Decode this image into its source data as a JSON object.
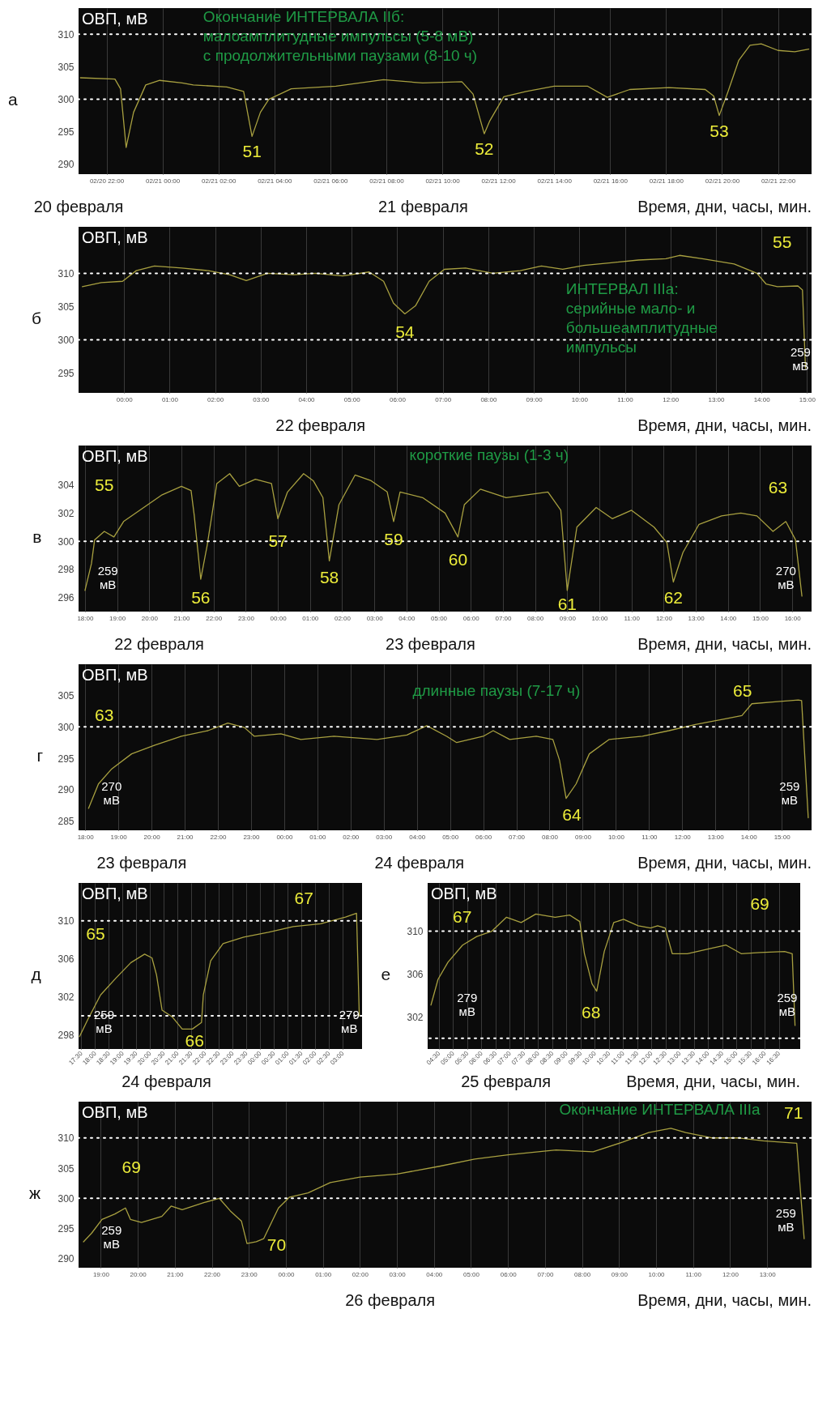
{
  "chart_data": [
    {
      "type": "line",
      "title": "а",
      "ylabel": "ОВП, мВ",
      "xlim": [
        "--02-20T21:00",
        "--02-21T23:12"
      ],
      "ylim": [
        288.5,
        314
      ],
      "yticks": [
        290,
        295,
        300,
        305,
        310
      ],
      "xticks": [
        {
          "value": "--02-20T22:00",
          "label": "02/20 22:00"
        },
        {
          "value": "--02-21T00:00",
          "label": "02/21 00:00"
        },
        {
          "value": "--02-21T02:00",
          "label": "02/21 02:00"
        },
        {
          "value": "--02-21T04:00",
          "label": "02/21 04:00"
        },
        {
          "value": "--02-21T06:00",
          "label": "02/21 06:00"
        },
        {
          "value": "--02-21T08:00",
          "label": "02/21 08:00"
        },
        {
          "value": "--02-21T10:00",
          "label": "02/21 10:00"
        },
        {
          "value": "--02-21T12:00",
          "label": "02/21 12:00"
        },
        {
          "value": "--02-21T14:00",
          "label": "02/21 14:00"
        },
        {
          "value": "--02-21T16:00",
          "label": "02/21 16:00"
        },
        {
          "value": "--02-21T18:00",
          "label": "02/21 18:00"
        },
        {
          "value": "--02-21T20:00",
          "label": "02/21 20:00"
        },
        {
          "value": "--02-21T22:00",
          "label": "02/21 22:00"
        }
      ],
      "x": [
        "--02-20T21:04",
        "--02-20T22:18",
        "--02-20T22:30",
        "--02-20T22:42",
        "--02-20T22:58",
        "--02-20T23:24",
        "--02-20T23:54",
        "--02-21T00:42",
        "--02-21T01:06",
        "--02-21T02:18",
        "--02-21T02:54",
        "--02-21T03:12",
        "--02-21T03:30",
        "--02-21T03:48",
        "--02-21T04:36",
        "--02-21T06:12",
        "--02-21T07:54",
        "--02-21T09:18",
        "--02-21T10:42",
        "--02-21T11:06",
        "--02-21T11:30",
        "--02-21T11:42",
        "--02-21T12:12",
        "--02-21T13:00",
        "--02-21T14:00",
        "--02-21T15:12",
        "--02-21T15:54",
        "--02-21T16:42",
        "--02-21T18:06",
        "--02-21T19:24",
        "--02-21T19:42",
        "--02-21T19:54",
        "--02-21T20:12",
        "--02-21T20:36",
        "--02-21T21:00",
        "--02-21T21:24",
        "--02-21T22:00",
        "--02-21T22:36",
        "--02-21T23:06"
      ],
      "series": [
        {
          "color": "#a8a040",
          "values": [
            303.3,
            303.1,
            301.6,
            292.6,
            298,
            302.2,
            302.9,
            302.5,
            302.2,
            301.9,
            301.2,
            294.3,
            298,
            300,
            301.6,
            302,
            303,
            302.5,
            302.7,
            300.8,
            294.7,
            296.7,
            300.4,
            301.2,
            302,
            302,
            300.3,
            301.5,
            301.8,
            301.5,
            300.5,
            297.5,
            301,
            306,
            308.3,
            308.5,
            307.5,
            307.3,
            307.7
          ]
        }
      ],
      "ref_lines": [
        {
          "axis": "y",
          "value": 310,
          "color": "#ffffff",
          "line_style": "dotted"
        },
        {
          "axis": "y",
          "value": 300,
          "color": "#ffffff",
          "line_style": "dotted"
        }
      ],
      "grid": "x",
      "annotations": [
        {
          "text": "51",
          "x": "--02-21T03:12",
          "y": 294.3
        },
        {
          "text": "52",
          "x": "--02-21T11:30",
          "y": 294.7
        },
        {
          "text": "53",
          "x": "--02-21T19:54",
          "y": 297.5
        },
        "Окончание ИНТЕРВАЛА IIб:\nмалоамплитудные импульсы (5-8 мВ)\nс продолжительными паузами (8-10 ч)",
        "20 февраля",
        "21 февраля",
        "Время, дни, часы, мин."
      ]
    },
    {
      "type": "line",
      "title": "б",
      "ylabel": "ОВП, мВ",
      "xlim": [
        "--02-21T23:00",
        "--02-22T15:06"
      ],
      "ylim": [
        292,
        317
      ],
      "yticks": [
        295,
        300,
        305,
        310
      ],
      "xticks": [
        {
          "value": "--02-22T00:00",
          "label": "00:00"
        },
        {
          "value": "--02-22T01:00",
          "label": "01:00"
        },
        {
          "value": "--02-22T02:00",
          "label": "02:00"
        },
        {
          "value": "--02-22T03:00",
          "label": "03:00"
        },
        {
          "value": "--02-22T04:00",
          "label": "04:00"
        },
        {
          "value": "--02-22T05:00",
          "label": "05:00"
        },
        {
          "value": "--02-22T06:00",
          "label": "06:00"
        },
        {
          "value": "--02-22T07:00",
          "label": "07:00"
        },
        {
          "value": "--02-22T08:00",
          "label": "08:00"
        },
        {
          "value": "--02-22T09:00",
          "label": "09:00"
        },
        {
          "value": "--02-22T10:00",
          "label": "10:00"
        },
        {
          "value": "--02-22T11:00",
          "label": "11:00"
        },
        {
          "value": "--02-22T12:00",
          "label": "12:00"
        },
        {
          "value": "--02-22T13:00",
          "label": "13:00"
        },
        {
          "value": "--02-22T14:00",
          "label": "14:00"
        },
        {
          "value": "--02-22T15:00",
          "label": "15:00"
        }
      ],
      "x": [
        "--02-21T23:05",
        "--02-21T23:30",
        "--02-21T23:58",
        "--02-22T00:16",
        "--02-22T00:40",
        "--02-22T01:16",
        "--02-22T01:51",
        "--02-22T02:19",
        "--02-22T02:41",
        "--02-22T03:09",
        "--02-22T03:44",
        "--02-22T04:12",
        "--02-22T04:48",
        "--02-22T05:23",
        "--02-22T05:42",
        "--02-22T05:55",
        "--02-22T06:10",
        "--02-22T06:24",
        "--02-22T06:42",
        "--02-22T07:02",
        "--02-22T07:30",
        "--02-22T08:06",
        "--02-22T08:42",
        "--02-22T09:10",
        "--02-22T09:38",
        "--02-22T10:06",
        "--02-22T10:42",
        "--02-22T11:18",
        "--02-22T11:54",
        "--02-22T12:12",
        "--02-22T12:42",
        "--02-22T13:24",
        "--02-22T13:54",
        "--02-22T14:06",
        "--02-22T14:21",
        "--02-22T14:48",
        "--02-22T14:54",
        "--02-22T14:58"
      ],
      "series": [
        {
          "color": "#a8a040",
          "values": [
            308,
            308.6,
            308.8,
            310.4,
            311.1,
            310.8,
            310.4,
            309.8,
            308.9,
            310,
            309.8,
            310,
            309.6,
            310.2,
            308.8,
            305.5,
            303.9,
            305.1,
            308.8,
            310.6,
            310.8,
            310,
            310.4,
            311.1,
            310.6,
            311.2,
            311.6,
            312,
            312.2,
            312.7,
            312.2,
            311.4,
            310,
            308.4,
            308,
            308.1,
            307.5,
            295.7
          ]
        }
      ],
      "ref_lines": [
        {
          "axis": "y",
          "value": 310,
          "color": "#ffffff",
          "line_style": "dotted"
        },
        {
          "axis": "y",
          "value": 300,
          "color": "#ffffff",
          "line_style": "dotted"
        }
      ],
      "grid": "x",
      "annotations": [
        {
          "text": "54",
          "x": "--02-22T06:10",
          "y": 303.9
        },
        {
          "text": "55",
          "x": "--02-22T14:54",
          "y": 307.5
        },
        "ИНТЕРВАЛ IIIа:\nсерийные мало- и\nбольшеамплитудные\nимпульсы",
        "259\nмВ",
        "22 февраля",
        "Время, дни, часы, мин."
      ]
    },
    {
      "type": "line",
      "title": "в",
      "ylabel": "ОВП, мВ",
      "xlim": [
        "--02-22T17:48",
        "--02-23T16:36"
      ],
      "ylim": [
        295,
        306.8
      ],
      "yticks": [
        296,
        298,
        300,
        302,
        304
      ],
      "xticks": [
        {
          "value": "--02-22T18:00",
          "label": "18:00"
        },
        {
          "value": "--02-22T19:00",
          "label": "19:00"
        },
        {
          "value": "--02-22T20:00",
          "label": "20:00"
        },
        {
          "value": "--02-22T21:00",
          "label": "21:00"
        },
        {
          "value": "--02-22T22:00",
          "label": "22:00"
        },
        {
          "value": "--02-22T23:00",
          "label": "23:00"
        },
        {
          "value": "--02-23T00:00",
          "label": "00:00"
        },
        {
          "value": "--02-23T01:00",
          "label": "01:00"
        },
        {
          "value": "--02-23T02:00",
          "label": "02:00"
        },
        {
          "value": "--02-23T03:00",
          "label": "03:00"
        },
        {
          "value": "--02-23T04:00",
          "label": "04:00"
        },
        {
          "value": "--02-23T05:00",
          "label": "05:00"
        },
        {
          "value": "--02-23T06:00",
          "label": "06:00"
        },
        {
          "value": "--02-23T07:00",
          "label": "07:00"
        },
        {
          "value": "--02-23T08:00",
          "label": "08:00"
        },
        {
          "value": "--02-23T09:00",
          "label": "09:00"
        },
        {
          "value": "--02-23T10:00",
          "label": "10:00"
        },
        {
          "value": "--02-23T11:00",
          "label": "11:00"
        },
        {
          "value": "--02-23T12:00",
          "label": "12:00"
        },
        {
          "value": "--02-23T13:00",
          "label": "13:00"
        },
        {
          "value": "--02-23T14:00",
          "label": "14:00"
        },
        {
          "value": "--02-23T15:00",
          "label": "15:00"
        },
        {
          "value": "--02-23T16:00",
          "label": "16:00"
        }
      ],
      "x": [
        "--02-22T18:00",
        "--02-22T18:12",
        "--02-22T18:18",
        "--02-22T18:36",
        "--02-22T18:54",
        "--02-22T19:12",
        "--02-22T19:42",
        "--02-22T20:24",
        "--02-22T21:00",
        "--02-22T21:18",
        "--02-22T21:24",
        "--02-22T21:36",
        "--02-22T21:48",
        "--02-22T22:06",
        "--02-22T22:30",
        "--02-22T22:48",
        "--02-22T23:18",
        "--02-22T23:48",
        "--02-23T00:00",
        "--02-23T00:18",
        "--02-23T00:48",
        "--02-23T01:06",
        "--02-23T01:24",
        "--02-23T01:36",
        "--02-23T01:54",
        "--02-23T02:24",
        "--02-23T02:54",
        "--02-23T03:24",
        "--02-23T03:36",
        "--02-23T03:48",
        "--02-23T04:30",
        "--02-23T05:12",
        "--02-23T05:36",
        "--02-23T05:48",
        "--02-23T06:18",
        "--02-23T07:06",
        "--02-23T08:24",
        "--02-23T08:48",
        "--02-23T09:00",
        "--02-23T09:18",
        "--02-23T09:54",
        "--02-23T10:24",
        "--02-23T11:00",
        "--02-23T11:42",
        "--02-23T12:06",
        "--02-23T12:18",
        "--02-23T12:36",
        "--02-23T13:06",
        "--02-23T13:48",
        "--02-23T14:24",
        "--02-23T14:54",
        "--02-23T15:24",
        "--02-23T15:48",
        "--02-23T16:06",
        "--02-23T16:18"
      ],
      "series": [
        {
          "color": "#a8a040",
          "values": [
            296.5,
            298.4,
            300.1,
            300.7,
            300.3,
            301.4,
            302.2,
            303.3,
            303.9,
            303.6,
            301.8,
            297.3,
            299.7,
            304.1,
            304.8,
            303.9,
            304.4,
            304.1,
            301.6,
            303.5,
            304.8,
            304.3,
            303.1,
            298.6,
            302.6,
            304.7,
            304.3,
            303.5,
            301.4,
            303.5,
            303.1,
            302,
            300.3,
            302.6,
            303.7,
            303.1,
            303.5,
            302.2,
            296.5,
            301,
            302.4,
            301.6,
            302.2,
            301,
            299.9,
            297.1,
            299.2,
            301.2,
            301.8,
            302,
            301.8,
            300.7,
            301.4,
            300.1,
            296.1
          ]
        }
      ],
      "ref_lines": [
        {
          "axis": "y",
          "value": 300,
          "color": "#ffffff",
          "line_style": "dotted"
        }
      ],
      "grid": "x",
      "annotations": [
        "55",
        {
          "text": "56",
          "x": "--02-22T21:36",
          "y": 297.3
        },
        {
          "text": "57",
          "x": "--02-23T00:00",
          "y": 301.6
        },
        {
          "text": "58",
          "x": "--02-23T01:36",
          "y": 298.6
        },
        {
          "text": "59",
          "x": "--02-23T03:36",
          "y": 301.4
        },
        {
          "text": "60",
          "x": "--02-23T05:36",
          "y": 300.3
        },
        {
          "text": "61",
          "x": "--02-23T09:00",
          "y": 296.5
        },
        {
          "text": "62",
          "x": "--02-23T12:18",
          "y": 297.1
        },
        "63",
        "короткие паузы (1-3 ч)",
        "259\nмВ",
        "270\nмВ",
        "22 февраля",
        "23 февраля",
        "Время, дни, часы, мин."
      ]
    },
    {
      "type": "line",
      "title": "г",
      "ylabel": "ОВП, мВ",
      "xlim": [
        "--02-23T17:48",
        "--02-24T15:54"
      ],
      "ylim": [
        283.5,
        310
      ],
      "yticks": [
        285,
        290,
        295,
        300,
        305
      ],
      "xticks": [
        {
          "value": "--02-23T18:00",
          "label": "18:00"
        },
        {
          "value": "--02-23T19:00",
          "label": "19:00"
        },
        {
          "value": "--02-23T20:00",
          "label": "20:00"
        },
        {
          "value": "--02-23T21:00",
          "label": "21:00"
        },
        {
          "value": "--02-23T22:00",
          "label": "22:00"
        },
        {
          "value": "--02-23T23:00",
          "label": "23:00"
        },
        {
          "value": "--02-24T00:00",
          "label": "00:00"
        },
        {
          "value": "--02-24T01:00",
          "label": "01:00"
        },
        {
          "value": "--02-24T02:00",
          "label": "02:00"
        },
        {
          "value": "--02-24T03:00",
          "label": "03:00"
        },
        {
          "value": "--02-24T04:00",
          "label": "04:00"
        },
        {
          "value": "--02-24T05:00",
          "label": "05:00"
        },
        {
          "value": "--02-24T06:00",
          "label": "06:00"
        },
        {
          "value": "--02-24T07:00",
          "label": "07:00"
        },
        {
          "value": "--02-24T08:00",
          "label": "08:00"
        },
        {
          "value": "--02-24T09:00",
          "label": "09:00"
        },
        {
          "value": "--02-24T10:00",
          "label": "10:00"
        },
        {
          "value": "--02-24T11:00",
          "label": "11:00"
        },
        {
          "value": "--02-24T12:00",
          "label": "12:00"
        },
        {
          "value": "--02-24T13:00",
          "label": "13:00"
        },
        {
          "value": "--02-24T14:00",
          "label": "14:00"
        },
        {
          "value": "--02-24T15:00",
          "label": "15:00"
        }
      ],
      "x": [
        "--02-23T18:06",
        "--02-23T18:24",
        "--02-23T18:48",
        "--02-23T19:24",
        "--02-23T20:06",
        "--02-23T20:54",
        "--02-23T21:42",
        "--02-23T22:18",
        "--02-23T22:48",
        "--02-23T23:06",
        "--02-23T23:54",
        "--02-24T00:30",
        "--02-24T01:30",
        "--02-24T02:48",
        "--02-24T03:42",
        "--02-24T04:18",
        "--02-24T04:54",
        "--02-24T05:12",
        "--02-24T06:00",
        "--02-24T06:18",
        "--02-24T06:48",
        "--02-24T07:36",
        "--02-24T08:06",
        "--02-24T08:18",
        "--02-24T08:30",
        "--02-24T08:48",
        "--02-24T09:12",
        "--02-24T09:48",
        "--02-24T10:48",
        "--02-24T11:36",
        "--02-24T12:24",
        "--02-24T13:18",
        "--02-24T13:48",
        "--02-24T14:06",
        "--02-24T14:48",
        "--02-24T15:30",
        "--02-24T15:36",
        "--02-24T15:48"
      ],
      "series": [
        {
          "color": "#a8a040",
          "values": [
            287,
            290.9,
            293.3,
            295.7,
            297.1,
            298.5,
            299.4,
            300.6,
            299.9,
            298.5,
            298.9,
            298,
            298.5,
            298,
            298.7,
            300.2,
            298.5,
            297.5,
            298.5,
            299.4,
            298,
            298.5,
            298,
            294.7,
            288.6,
            290.9,
            295.7,
            298,
            298.5,
            299.4,
            300.4,
            301.3,
            301.8,
            303.7,
            304,
            304.3,
            304.2,
            285.5
          ]
        }
      ],
      "ref_lines": [
        {
          "axis": "y",
          "value": 300,
          "color": "#ffffff",
          "line_style": "dotted"
        }
      ],
      "grid": "x",
      "annotations": [
        "63",
        {
          "text": "64",
          "x": "--02-24T08:30",
          "y": 288.6
        },
        {
          "text": "65",
          "x": "--02-24T15:36",
          "y": 304.2
        },
        "длинные паузы (7-17 ч)",
        "270\nмВ",
        "259\nмВ",
        "23 февраля",
        "24 февраля",
        "Время, дни, часы, мин."
      ]
    },
    {
      "type": "line",
      "title": "д",
      "ylabel": "ОВП, мВ",
      "xlim": [
        "--02-24T17:24",
        "--02-25T03:42"
      ],
      "ylim": [
        296.5,
        314
      ],
      "yticks": [
        298,
        302,
        306,
        310
      ],
      "xticks": [
        {
          "value": "--02-24T17:30",
          "label": "17:30"
        },
        {
          "value": "--02-24T18:00",
          "label": "18:00"
        },
        {
          "value": "--02-24T18:30",
          "label": "18:30"
        },
        {
          "value": "--02-24T19:00",
          "label": "19:00"
        },
        {
          "value": "--02-24T19:30",
          "label": "19:30"
        },
        {
          "value": "--02-24T20:00",
          "label": "20:00"
        },
        {
          "value": "--02-24T20:30",
          "label": "20:30"
        },
        {
          "value": "--02-24T21:00",
          "label": "21:00"
        },
        {
          "value": "--02-24T21:30",
          "label": "21:30"
        },
        {
          "value": "--02-24T22:00",
          "label": "22:00"
        },
        {
          "value": "--02-24T22:30",
          "label": "22:30"
        },
        {
          "value": "--02-24T23:00",
          "label": "23:00"
        },
        {
          "value": "--02-24T23:30",
          "label": "23:30"
        },
        {
          "value": "--02-25T00:00",
          "label": "00:00"
        },
        {
          "value": "--02-25T00:30",
          "label": "00:30"
        },
        {
          "value": "--02-25T01:00",
          "label": "01:00"
        },
        {
          "value": "--02-25T01:30",
          "label": "01:30"
        },
        {
          "value": "--02-25T02:00",
          "label": "02:00"
        },
        {
          "value": "--02-25T02:30",
          "label": "02:30"
        },
        {
          "value": "--02-25T03:00",
          "label": "03:00"
        }
      ],
      "x": [
        "--02-24T17:26",
        "--02-24T17:44",
        "--02-24T18:12",
        "--02-24T18:46",
        "--02-24T19:18",
        "--02-24T19:48",
        "--02-24T20:04",
        "--02-24T20:14",
        "--02-24T20:26",
        "--02-24T20:48",
        "--02-24T21:10",
        "--02-24T21:32",
        "--02-24T21:52",
        "--02-24T21:56",
        "--02-24T22:12",
        "--02-24T22:39",
        "--02-24T23:24",
        "--02-25T00:18",
        "--02-25T01:12",
        "--02-25T02:12",
        "--02-25T03:06",
        "--02-25T03:30",
        "--02-25T03:36"
      ],
      "series": [
        {
          "color": "#a8a040",
          "values": [
            297.8,
            299.6,
            302.2,
            304,
            305.6,
            306.5,
            306.1,
            304.3,
            300.6,
            299.9,
            298.6,
            298.6,
            299.3,
            302.2,
            305.8,
            307.6,
            308.3,
            308.8,
            309.4,
            309.7,
            310.4,
            310.8,
            300
          ]
        }
      ],
      "ref_lines": [
        {
          "axis": "y",
          "value": 310,
          "color": "#ffffff",
          "line_style": "dotted"
        },
        {
          "axis": "y",
          "value": 300,
          "color": "#ffffff",
          "line_style": "dotted"
        }
      ],
      "grid": "x",
      "annotations": [
        "65",
        {
          "text": "66",
          "x": "--02-24T21:12",
          "y": 298.6
        },
        {
          "text": "67",
          "x": "--02-25T03:30",
          "y": 310.8
        },
        "259\nмВ",
        "279\nмВ",
        "24 февраля"
      ]
    },
    {
      "type": "line",
      "title": "е",
      "ylabel": "ОВП, мВ",
      "xlim": [
        "--02-25T04:06",
        "--02-25T17:15"
      ],
      "ylim": [
        299,
        314.5
      ],
      "yticks": [
        302,
        306,
        310
      ],
      "xticks": [
        {
          "value": "--02-25T04:30",
          "label": "04:30"
        },
        {
          "value": "--02-25T05:00",
          "label": "05:00"
        },
        {
          "value": "--02-25T05:30",
          "label": "05:30"
        },
        {
          "value": "--02-25T06:00",
          "label": "06:00"
        },
        {
          "value": "--02-25T06:30",
          "label": "06:30"
        },
        {
          "value": "--02-25T07:00",
          "label": "07:00"
        },
        {
          "value": "--02-25T07:30",
          "label": "07:30"
        },
        {
          "value": "--02-25T08:00",
          "label": "08:00"
        },
        {
          "value": "--02-25T08:30",
          "label": "08:30"
        },
        {
          "value": "--02-25T09:00",
          "label": "09:00"
        },
        {
          "value": "--02-25T09:30",
          "label": "09:30"
        },
        {
          "value": "--02-25T10:00",
          "label": "10:00"
        },
        {
          "value": "--02-25T10:30",
          "label": "10:30"
        },
        {
          "value": "--02-25T11:00",
          "label": "11:00"
        },
        {
          "value": "--02-25T11:30",
          "label": "11:30"
        },
        {
          "value": "--02-25T12:00",
          "label": "12:00"
        },
        {
          "value": "--02-25T12:30",
          "label": "12:30"
        },
        {
          "value": "--02-25T13:00",
          "label": "13:00"
        },
        {
          "value": "--02-25T13:30",
          "label": "13:30"
        },
        {
          "value": "--02-25T14:00",
          "label": "14:00"
        },
        {
          "value": "--02-25T14:30",
          "label": "14:30"
        },
        {
          "value": "--02-25T15:00",
          "label": "15:00"
        },
        {
          "value": "--02-25T15:30",
          "label": "15:30"
        },
        {
          "value": "--02-25T16:00",
          "label": "16:00"
        },
        {
          "value": "--02-25T16:30",
          "label": "16:30"
        }
      ],
      "x": [
        "--02-25T04:13",
        "--02-25T04:28",
        "--02-25T04:49",
        "--02-25T05:20",
        "--02-25T05:50",
        "--02-25T06:22",
        "--02-25T06:53",
        "--02-25T07:24",
        "--02-25T07:55",
        "--02-25T08:36",
        "--02-25T09:07",
        "--02-25T09:28",
        "--02-25T09:38",
        "--02-25T09:54",
        "--02-25T10:04",
        "--02-25T10:20",
        "--02-25T10:40",
        "--02-25T11:01",
        "--02-25T11:32",
        "--02-25T11:58",
        "--02-25T12:13",
        "--02-25T12:29",
        "--02-25T12:44",
        "--02-25T13:16",
        "--02-25T14:07",
        "--02-25T14:38",
        "--02-25T15:10",
        "--02-25T15:50",
        "--02-25T16:42",
        "--02-25T16:58",
        "--02-25T17:04"
      ],
      "series": [
        {
          "color": "#a8a040",
          "values": [
            303.1,
            305.5,
            307.1,
            308.7,
            309.5,
            310,
            311.3,
            310.8,
            311.6,
            311.3,
            311.5,
            310.9,
            307.9,
            305.1,
            304.4,
            308.1,
            310.8,
            311.1,
            310.5,
            310.3,
            310.5,
            310.3,
            307.9,
            307.9,
            308.4,
            308.7,
            307.9,
            308,
            308.1,
            307.9,
            301.2
          ]
        }
      ],
      "ref_lines": [
        {
          "axis": "y",
          "value": 310,
          "color": "#ffffff",
          "line_style": "dotted"
        },
        {
          "axis": "y",
          "value": 300,
          "color": "#ffffff",
          "line_style": "dotted"
        }
      ],
      "grid": "x",
      "annotations": [
        "67",
        {
          "text": "68",
          "x": "--02-25T10:04",
          "y": 304.4
        },
        {
          "text": "69",
          "x": "--02-25T16:58",
          "y": 307.9
        },
        "279\nмВ",
        "259\nмВ",
        "25 февраля",
        "Время, дни, часы, мин."
      ]
    },
    {
      "type": "line",
      "title": "ж",
      "ylabel": "ОВП, мВ",
      "xlim": [
        "--02-25T18:24",
        "--02-26T14:12"
      ],
      "ylim": [
        288.5,
        316
      ],
      "yticks": [
        290,
        295,
        300,
        305,
        310
      ],
      "xticks": [
        {
          "value": "--02-25T19:00",
          "label": "19:00"
        },
        {
          "value": "--02-25T20:00",
          "label": "20:00"
        },
        {
          "value": "--02-25T21:00",
          "label": "21:00"
        },
        {
          "value": "--02-25T22:00",
          "label": "22:00"
        },
        {
          "value": "--02-25T23:00",
          "label": "23:00"
        },
        {
          "value": "--02-26T00:00",
          "label": "00:00"
        },
        {
          "value": "--02-26T01:00",
          "label": "01:00"
        },
        {
          "value": "--02-26T02:00",
          "label": "02:00"
        },
        {
          "value": "--02-26T03:00",
          "label": "03:00"
        },
        {
          "value": "--02-26T04:00",
          "label": "04:00"
        },
        {
          "value": "--02-26T05:00",
          "label": "05:00"
        },
        {
          "value": "--02-26T06:00",
          "label": "06:00"
        },
        {
          "value": "--02-26T07:00",
          "label": "07:00"
        },
        {
          "value": "--02-26T08:00",
          "label": "08:00"
        },
        {
          "value": "--02-26T09:00",
          "label": "09:00"
        },
        {
          "value": "--02-26T10:00",
          "label": "10:00"
        },
        {
          "value": "--02-26T11:00",
          "label": "11:00"
        },
        {
          "value": "--02-26T12:00",
          "label": "12:00"
        },
        {
          "value": "--02-26T13:00",
          "label": "13:00"
        }
      ],
      "x": [
        "--02-25T18:32",
        "--02-25T18:45",
        "--02-25T19:02",
        "--02-25T19:23",
        "--02-25T19:40",
        "--02-25T19:48",
        "--02-25T20:06",
        "--02-25T20:39",
        "--02-25T20:54",
        "--02-25T21:12",
        "--02-25T21:48",
        "--02-25T22:12",
        "--02-25T22:30",
        "--02-25T22:48",
        "--02-25T22:57",
        "--02-25T23:12",
        "--02-25T23:24",
        "--02-25T23:48",
        "--02-26T00:06",
        "--02-26T00:36",
        "--02-26T01:12",
        "--02-26T02:00",
        "--02-26T03:00",
        "--02-26T04:09",
        "--02-26T05:06",
        "--02-26T06:00",
        "--02-26T07:18",
        "--02-26T08:18",
        "--02-26T09:06",
        "--02-26T09:48",
        "--02-26T10:24",
        "--02-26T10:48",
        "--02-26T11:30",
        "--02-26T12:12",
        "--02-26T12:54",
        "--02-26T13:48",
        "--02-26T14:00"
      ],
      "series": [
        {
          "color": "#a8a040",
          "values": [
            292.8,
            294.2,
            296.5,
            297.4,
            298.4,
            296.5,
            296,
            297,
            298.7,
            298.1,
            299.3,
            300,
            297.9,
            296.2,
            292.5,
            292.8,
            293.3,
            298.4,
            300.2,
            300.9,
            302.6,
            303.5,
            304,
            305.3,
            306.5,
            307.2,
            308,
            307.7,
            309.3,
            310.9,
            311.6,
            310.9,
            310,
            310,
            309.5,
            309.1,
            293.3
          ]
        }
      ],
      "ref_lines": [
        {
          "axis": "y",
          "value": 310,
          "color": "#ffffff",
          "line_style": "dotted"
        },
        {
          "axis": "y",
          "value": 300,
          "color": "#ffffff",
          "line_style": "dotted"
        }
      ],
      "grid": "x",
      "annotations": [
        "69",
        {
          "text": "70",
          "x": "--02-25T23:12",
          "y": 292.8
        },
        {
          "text": "71",
          "x": "--02-26T13:48",
          "y": 309.1
        },
        "Окончание ИНТЕРВАЛА IIIа",
        "259\nмВ",
        "259\nмВ",
        "26 февраля",
        "Время, дни, часы, мин."
      ]
    }
  ]
}
